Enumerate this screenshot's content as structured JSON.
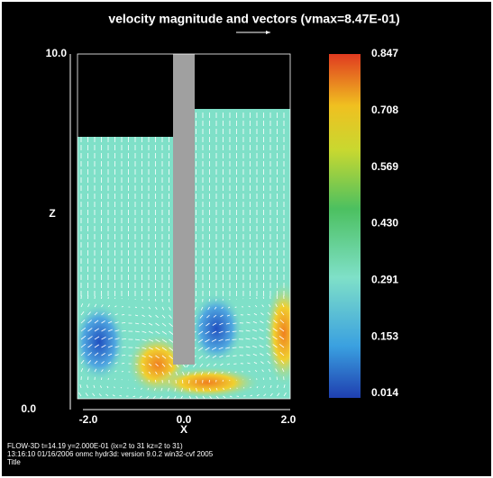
{
  "title": "velocity magnitude and vectors (vmax=8.47E-01)",
  "axes": {
    "z_label": "Z",
    "x_label": "X",
    "z_ticks": [
      "10.0",
      "0.0"
    ],
    "x_ticks": [
      "-2.0",
      "0.0",
      "2.0"
    ]
  },
  "colorbar": {
    "labels": [
      "0.847",
      "0.708",
      "0.569",
      "0.430",
      "0.291",
      "0.153",
      "0.014"
    ]
  },
  "footer": [
    "FLOW-3D  t=14.19  y=2.000E-01  (ix=2 to 31  kz=2 to 31)",
    "13:16:10  01/16/2006  onmc      hydr3d:  version  9.0.2  win32-cvf 2005",
    "Title"
  ]
}
